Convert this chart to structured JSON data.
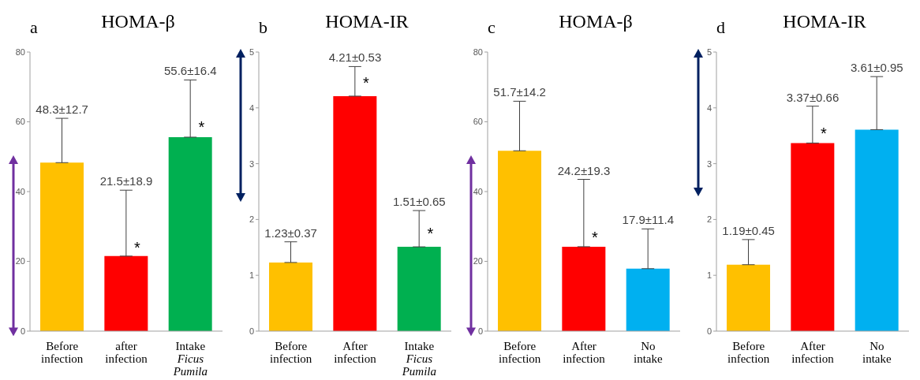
{
  "chart_data": [
    {
      "type": "bar",
      "title": "HOMA-β",
      "annotations": [
        "a",
        {
          "text": "*",
          "x": "after\ninfection",
          "y": 24
        },
        {
          "text": "*",
          "x": "Intake\nFicus\nPumila",
          "y": 58.5
        },
        {
          "text": "48.3±12.7",
          "x": "Before\ninfection",
          "y": 61.0
        },
        {
          "text": "21.5±18.9",
          "x": "after\ninfection",
          "y": 40.4
        },
        {
          "text": "55.6±16.4",
          "x": "Intake\nFicus\nPumila",
          "y": 72.0
        }
      ],
      "categories": [
        "Before\ninfection",
        "after\ninfection",
        "Intake\nFicus\nPumila"
      ],
      "values": [
        48.3,
        21.5,
        55.6
      ],
      "errors": [
        [
          48.3,
          61.0
        ],
        [
          21.5,
          40.4
        ],
        [
          55.6,
          72.0
        ]
      ],
      "colors": [
        "#ffc000",
        "#ff0000",
        "#00b050"
      ],
      "ylim": [
        0,
        80
      ],
      "yticks": [
        0,
        20,
        40,
        60,
        80
      ]
    },
    {
      "type": "bar",
      "title": "HOMA-IR",
      "annotations": [
        "b",
        {
          "text": "*",
          "x": "After\ninfection",
          "y": 4.45
        },
        {
          "text": "*",
          "x": "Intake\nFicus\nPumila",
          "y": 1.75
        },
        {
          "text": "1.23±0.37",
          "x": "Before\ninfection",
          "y": 1.6
        },
        {
          "text": "4.21±0.53",
          "x": "After\ninfection",
          "y": 4.74
        },
        {
          "text": "1.51±0.65",
          "x": "Intake\nFicus\nPumila",
          "y": 2.16
        }
      ],
      "categories": [
        "Before\ninfection",
        "After\ninfection",
        "Intake\nFicus\nPumila"
      ],
      "values": [
        1.23,
        4.21,
        1.51
      ],
      "errors": [
        [
          1.23,
          1.6
        ],
        [
          4.21,
          4.74
        ],
        [
          1.51,
          2.16
        ]
      ],
      "colors": [
        "#ffc000",
        "#ff0000",
        "#00b050"
      ],
      "ylim": [
        0,
        5
      ],
      "yticks": [
        0,
        1,
        2,
        3,
        4,
        5
      ]
    },
    {
      "type": "bar",
      "title": "HOMA-β",
      "annotations": [
        "c",
        {
          "text": "*",
          "x": "After\ninfection",
          "y": 27
        },
        {
          "text": "51.7±14.2",
          "x": "Before\ninfection",
          "y": 65.9
        },
        {
          "text": "24.2±19.3",
          "x": "After\ninfection",
          "y": 43.5
        },
        {
          "text": "17.9±11.4",
          "x": "No\nintake",
          "y": 29.3
        }
      ],
      "categories": [
        "Before\ninfection",
        "After\ninfection",
        "No\nintake"
      ],
      "values": [
        51.7,
        24.2,
        17.9
      ],
      "errors": [
        [
          51.7,
          65.9
        ],
        [
          24.2,
          43.5
        ],
        [
          17.9,
          29.3
        ]
      ],
      "colors": [
        "#ffc000",
        "#ff0000",
        "#00b0f0"
      ],
      "ylim": [
        0,
        80
      ],
      "yticks": [
        0,
        20,
        40,
        60,
        80
      ]
    },
    {
      "type": "bar",
      "title": "HOMA-IR",
      "annotations": [
        "d",
        {
          "text": "*",
          "x": "After\ninfection",
          "y": 3.55
        },
        {
          "text": "1.19±0.45",
          "x": "Before\ninfection",
          "y": 1.64
        },
        {
          "text": "3.37±0.66",
          "x": "After\ninfection",
          "y": 4.03
        },
        {
          "text": "3.61±0.95",
          "x": "No\nintake",
          "y": 4.56
        }
      ],
      "categories": [
        "Before\ninfection",
        "After\ninfection",
        "No\nintake"
      ],
      "values": [
        1.19,
        3.37,
        3.61
      ],
      "errors": [
        [
          1.19,
          1.64
        ],
        [
          3.37,
          4.03
        ],
        [
          3.61,
          4.56
        ]
      ],
      "colors": [
        "#ffc000",
        "#ff0000",
        "#00b0f0"
      ],
      "ylim": [
        0,
        5
      ],
      "yticks": [
        0,
        1,
        2,
        3,
        4,
        5
      ]
    }
  ]
}
